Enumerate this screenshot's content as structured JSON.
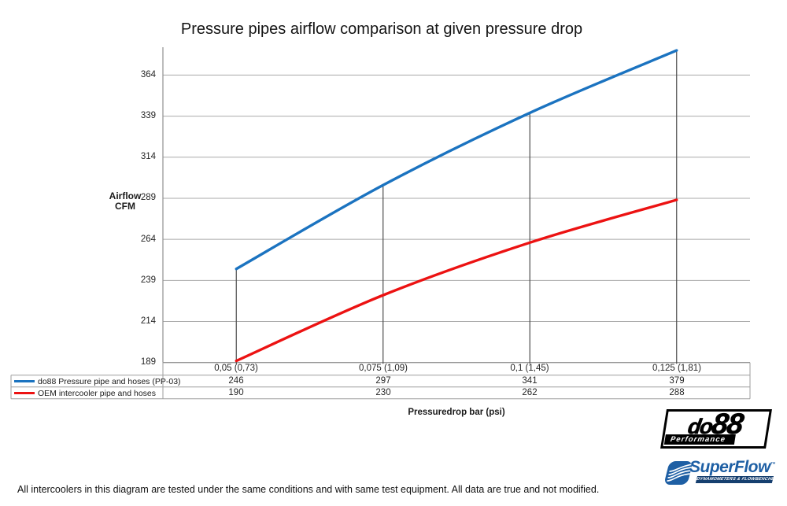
{
  "chart_data": {
    "type": "line",
    "smooth": true,
    "droplines": true,
    "title": "Pressure pipes airflow comparison at given pressure drop",
    "ylabel_lines": [
      "Airflow",
      "CFM"
    ],
    "xlabel": "Pressuredrop bar (psi)",
    "categories": [
      "0,05 (0,73)",
      "0,075 (1,09)",
      "0,1 (1,45)",
      "0,125 (1,81)"
    ],
    "yticks": [
      364,
      339,
      314,
      289,
      264,
      239,
      214,
      189
    ],
    "ylim": [
      189,
      381
    ],
    "grid": "horizontal",
    "legend_position": "table-left",
    "series": [
      {
        "name": "do88 Pressure pipe and hoses (PP-03)",
        "color": "#1b73c0",
        "values": [
          246,
          297,
          341,
          379
        ]
      },
      {
        "name": "OEM intercooler pipe and hoses",
        "color": "#ec1212",
        "values": [
          190,
          230,
          262,
          288
        ]
      }
    ]
  },
  "colors": {
    "gridline": "#a9a9a9",
    "axis": "#8f8f8f",
    "dropline": "#4d4d4d",
    "table_border": "#9e9e9e",
    "superflow_blue": "#1e5fa4",
    "superflow_dark": "#163f6f"
  },
  "footer": {
    "note": "All intercoolers in this diagram are tested under the same conditions and with same test equipment. All data are true and not modified."
  },
  "logos": {
    "do88": {
      "text_do": "do",
      "text_88": "88",
      "sub": "Performance"
    },
    "superflow": {
      "name": "SuperFlow",
      "tm": "™",
      "sub": "DYNAMOMETERS & FLOWBENCHES"
    }
  }
}
